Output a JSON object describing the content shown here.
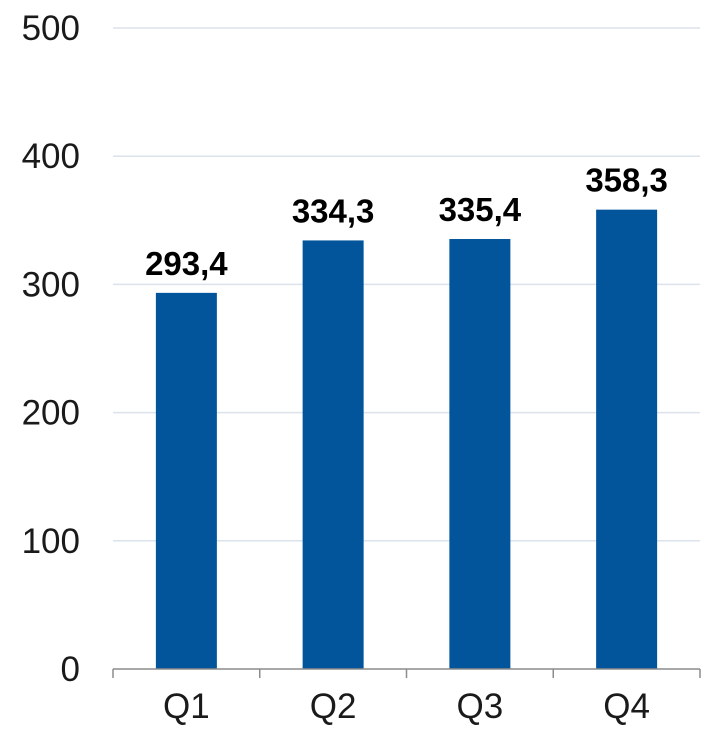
{
  "chart_data": {
    "type": "bar",
    "categories": [
      "Q1",
      "Q2",
      "Q3",
      "Q4"
    ],
    "values": [
      293.4,
      334.3,
      335.4,
      358.3
    ],
    "value_labels": [
      "293,4",
      "334,3",
      "335,4",
      "358,3"
    ],
    "y_ticks": [
      "0",
      "100",
      "200",
      "300",
      "400",
      "500"
    ],
    "ylim": [
      0,
      500
    ],
    "grid": true,
    "legend": "none",
    "colors": {
      "bar": "#02549b",
      "grid": "#dbe3ec",
      "axis": "#8c8c8c"
    }
  }
}
